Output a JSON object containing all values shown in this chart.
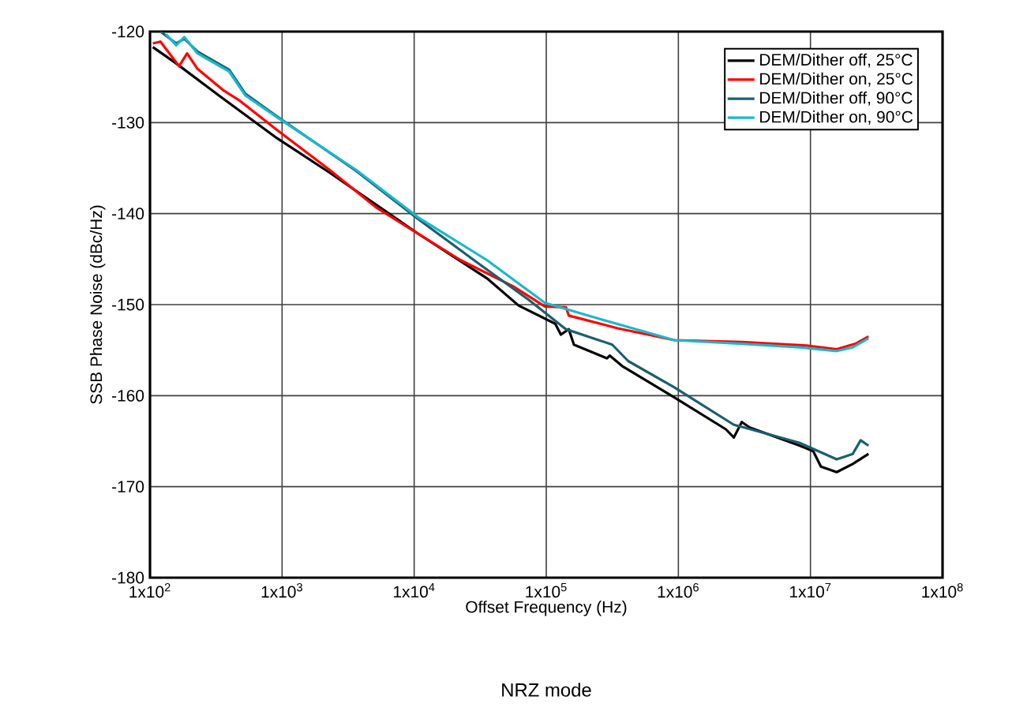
{
  "chart_data": {
    "type": "line",
    "xlabel": "Offset Frequency (Hz)",
    "ylabel": "SSB Phase Noise (dBc/Hz)",
    "log": "x",
    "grid": true,
    "legend": "top right",
    "xlim": [
      100,
      100000000
    ],
    "ylim": [
      -180,
      -120
    ],
    "xticks": [
      {
        "value": 100,
        "label": "1x10$^{2}$"
      },
      {
        "value": 1000,
        "label": "1x10$^{3}$"
      },
      {
        "value": 10000,
        "label": "1x10$^{4}$"
      },
      {
        "value": 100000,
        "label": "1x10$^{5}$"
      },
      {
        "value": 1000000,
        "label": "1x10$^{6}$"
      },
      {
        "value": 10000000,
        "label": "1x10$^{7}$"
      },
      {
        "value": 100000000,
        "label": "1x10$^{8}$"
      }
    ],
    "yticks": [
      -180,
      -170,
      -160,
      -150,
      -140,
      -130,
      -120
    ],
    "annotations": [
      "NRZ mode"
    ],
    "series": [
      {
        "name": "DEM/Dither off, 25°C",
        "color": "#000000",
        "x": [
          105,
          158,
          331,
          912,
          2290,
          10700,
          35500,
          61700,
          117000,
          129000,
          148000,
          162000,
          288000,
          302000,
          380000,
          933000,
          2290000,
          2630000,
          3020000,
          3470000,
          8320000,
          10500000,
          12000000,
          15800000,
          20900000,
          27500000
        ],
        "values": [
          -121.7,
          -123.5,
          -127,
          -131.7,
          -135.5,
          -142.2,
          -147.1,
          -150.1,
          -152.1,
          -153.3,
          -152.7,
          -154.4,
          -155.9,
          -155.6,
          -156.8,
          -160.2,
          -163.7,
          -164.6,
          -162.9,
          -163.5,
          -165.5,
          -166.1,
          -167.8,
          -168.4,
          -167.5,
          -166.4
        ]
      },
      {
        "name": "DEM/Dither on, 25°C",
        "color": "#ff0000",
        "x": [
          105,
          120,
          166,
          191,
          229,
          363,
          479,
          912,
          2290,
          5130,
          10700,
          22400,
          56200,
          97700,
          141000,
          148000,
          347000,
          933000,
          3020000,
          9330000,
          15800000,
          21900000,
          27500000
        ],
        "values": [
          -121.3,
          -121.1,
          -123.8,
          -122.4,
          -124.1,
          -126.5,
          -127.6,
          -130.8,
          -135.2,
          -139.3,
          -142.2,
          -145.1,
          -148,
          -150.2,
          -150.3,
          -151.2,
          -152.6,
          -153.9,
          -154.1,
          -154.5,
          -154.9,
          -154.3,
          -153.5
        ]
      },
      {
        "name": "DEM/Dither off, 90°C",
        "color": "#1a5f6e",
        "x": [
          120,
          158,
          182,
          229,
          398,
          525,
          912,
          3630,
          10700,
          30200,
          74100,
          141000,
          316000,
          417000,
          933000,
          2630000,
          3160000,
          8320000,
          15800000,
          20900000,
          24000000,
          27500000
        ],
        "values": [
          -120,
          -121.3,
          -120.8,
          -122.2,
          -124.2,
          -126.8,
          -129.3,
          -135.3,
          -140.6,
          -145.4,
          -149.5,
          -152.7,
          -154.4,
          -156.2,
          -159.1,
          -163.2,
          -163.5,
          -165.2,
          -167,
          -166.4,
          -164.9,
          -165.5
        ]
      },
      {
        "name": "DEM/Dither on, 90°C",
        "color": "#1ab8cc",
        "x": [
          132,
          158,
          182,
          229,
          398,
          525,
          912,
          3630,
          10700,
          35500,
          97700,
          288000,
          933000,
          3020000,
          8320000,
          15800000,
          20900000,
          27500000
        ],
        "values": [
          -120.3,
          -121.5,
          -120.6,
          -122.4,
          -124.4,
          -127,
          -129.4,
          -135.2,
          -140.4,
          -145.1,
          -149.8,
          -151.8,
          -153.9,
          -154.3,
          -154.7,
          -155.1,
          -154.7,
          -153.7
        ]
      }
    ]
  }
}
